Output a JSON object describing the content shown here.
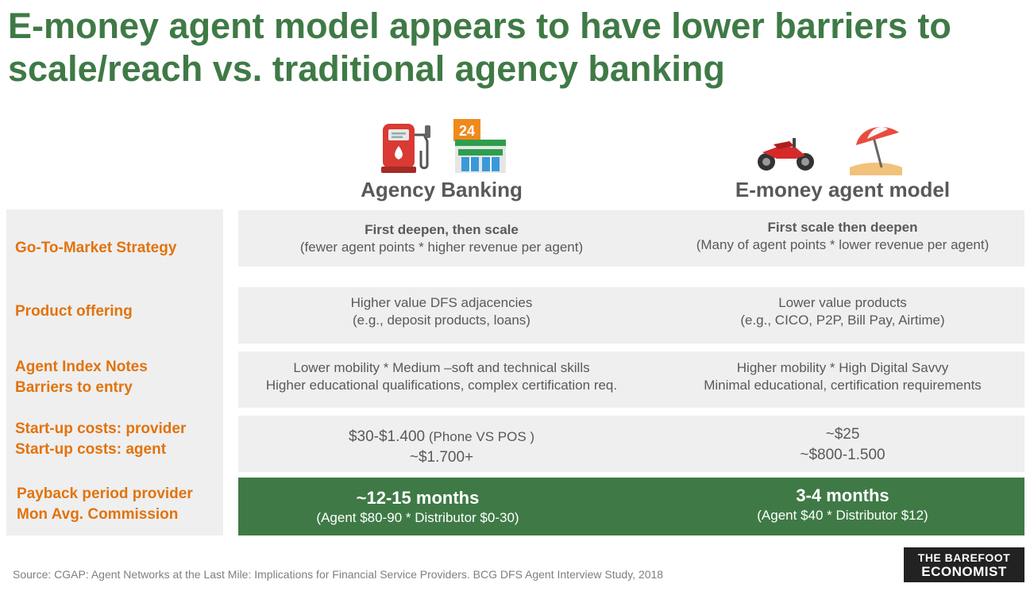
{
  "title": "E-money agent model appears to have lower barriers to scale/reach vs. traditional agency banking",
  "icons": {
    "agency": [
      "fuel-pump-icon",
      "convenience-store-icon"
    ],
    "emoney": [
      "motorcycle-icon",
      "beach-umbrella-icon"
    ]
  },
  "columns": {
    "agency": "Agency Banking",
    "emoney": "E-money agent model"
  },
  "rows": [
    {
      "labels": [
        "Go-To-Market Strategy"
      ],
      "agency": {
        "line1": "First deepen, then scale",
        "line2": "(fewer agent points * higher revenue per agent)"
      },
      "emoney": {
        "line1": "First scale then deepen",
        "line2": "(Many of agent points * lower revenue per agent)"
      }
    },
    {
      "labels": [
        "Product offering"
      ],
      "agency": {
        "line1": "Higher value DFS adjacencies",
        "line2": "(e.g., deposit products, loans)"
      },
      "emoney": {
        "line1": "Lower value products",
        "line2": "(e.g., CICO, P2P, Bill Pay, Airtime)"
      }
    },
    {
      "labels": [
        "Agent Index Notes",
        "Barriers to entry"
      ],
      "agency": {
        "line1": "Lower mobility * Medium –soft and technical skills",
        "line2": "Higher educational qualifications, complex certification req."
      },
      "emoney": {
        "line1": "Higher mobility * High Digital Savvy",
        "line2": "Minimal educational, certification requirements"
      }
    },
    {
      "labels": [
        "Start-up costs: provider",
        "Start-up costs: agent"
      ],
      "agency": {
        "line1": "$30-$1.400",
        "line1_note": " (Phone VS POS )",
        "line2": "~$1.700+"
      },
      "emoney": {
        "line1": "~$25",
        "line2": "~$800-1.500"
      }
    },
    {
      "labels": [
        "Payback period provider",
        "Mon Avg. Commission"
      ],
      "agency": {
        "line1": "~12-15 months",
        "line2": "(Agent $80-90 * Distributor $0-30)"
      },
      "emoney": {
        "line1": "3-4 months",
        "line2": "(Agent $40 * Distributor $12)"
      }
    }
  ],
  "source": "Source: CGAP: Agent Networks at the Last Mile: Implications for Financial Service Providers. BCG DFS Agent Interview Study, 2018",
  "logo": {
    "line1": "THE BAREFOOT",
    "line2": "ECONOMIST"
  },
  "colors": {
    "title": "#3f7a46",
    "label": "#e2730c",
    "highlight": "#3f7a46",
    "cell_bg": "#efefef"
  }
}
